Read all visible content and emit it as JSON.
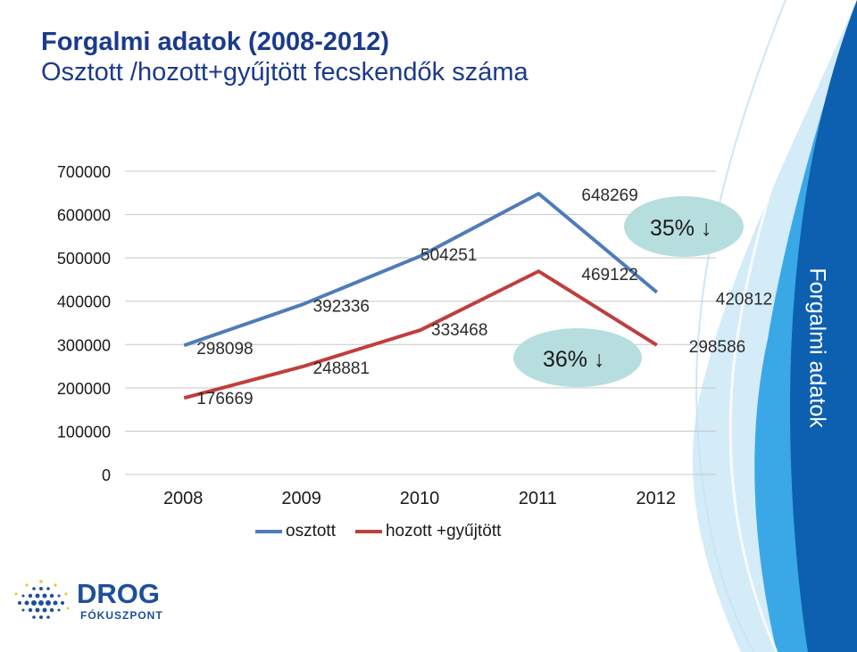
{
  "title": {
    "main": "Forgalmi adatok (2008-2012)",
    "sub": "Osztott /hozott+gyűjtött fecskendők száma"
  },
  "side_label": "Forgalmi adatok",
  "logo": {
    "word": "DROG",
    "sub": "FÓKUSZPONT"
  },
  "colors": {
    "title": "#1b3a8c",
    "osztott": "#4f7cb8",
    "hozott": "#bf3f3c",
    "ellipse": "#b7dede",
    "side_band": "#0d5fb0"
  },
  "chart_data": {
    "type": "line",
    "categories": [
      "2008",
      "2009",
      "2010",
      "2011",
      "2012"
    ],
    "ylim": [
      0,
      700000
    ],
    "yticks": [
      "0",
      "100000",
      "200000",
      "300000",
      "400000",
      "500000",
      "600000",
      "700000"
    ],
    "grid": true,
    "series": [
      {
        "name": "osztott",
        "values": [
          298098,
          392336,
          504251,
          648269,
          420812
        ],
        "labels": [
          "298098",
          "392336",
          "504251",
          "648269",
          "420812"
        ]
      },
      {
        "name": "hozott +gyűjtött",
        "values": [
          176669,
          248881,
          333468,
          469122,
          298586
        ],
        "labels": [
          "176669",
          "248881",
          "333468",
          "469122",
          "298586"
        ]
      }
    ],
    "annotations": [
      {
        "text": "35% ↓",
        "near_series": "osztott"
      },
      {
        "text": "36% ↓",
        "near_series": "hozott +gyűjtött"
      }
    ]
  }
}
